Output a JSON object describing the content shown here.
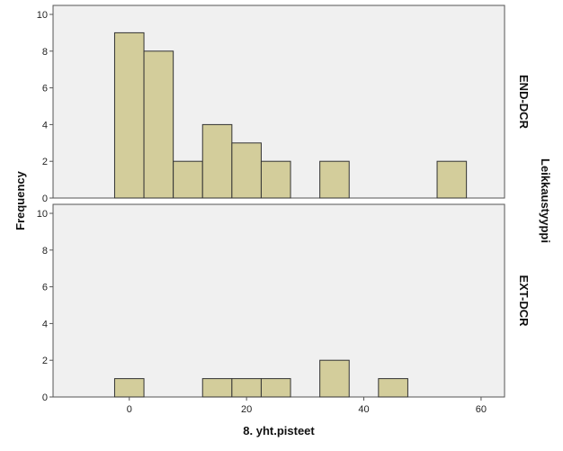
{
  "chart_data": {
    "type": "bar",
    "subtype": "histogram",
    "xlabel": "8. yht.pisteet",
    "ylabel": "Frequency",
    "facet_label": "Leikkaustyyppi",
    "xlim": [
      -13,
      64
    ],
    "ylim": [
      0,
      10
    ],
    "x_ticks": [
      0,
      20,
      40,
      60
    ],
    "y_ticks": [
      0,
      2,
      4,
      6,
      8,
      10
    ],
    "bin_width": 5,
    "grid": false,
    "colors": {
      "bar_fill": "#d3cd9b",
      "bar_stroke": "#333333",
      "plot_background": "#f0f0f0",
      "frame": "#555555"
    },
    "panels": [
      {
        "name": "END-DCR",
        "bins": [
          {
            "x0": -2.5,
            "x1": 2.5,
            "count": 9
          },
          {
            "x0": 2.5,
            "x1": 7.5,
            "count": 8
          },
          {
            "x0": 7.5,
            "x1": 12.5,
            "count": 2
          },
          {
            "x0": 12.5,
            "x1": 17.5,
            "count": 4
          },
          {
            "x0": 17.5,
            "x1": 22.5,
            "count": 3
          },
          {
            "x0": 22.5,
            "x1": 27.5,
            "count": 2
          },
          {
            "x0": 32.5,
            "x1": 37.5,
            "count": 2
          },
          {
            "x0": 52.5,
            "x1": 57.5,
            "count": 2
          }
        ]
      },
      {
        "name": "EXT-DCR",
        "bins": [
          {
            "x0": -2.5,
            "x1": 2.5,
            "count": 1
          },
          {
            "x0": 12.5,
            "x1": 17.5,
            "count": 1
          },
          {
            "x0": 17.5,
            "x1": 22.5,
            "count": 1
          },
          {
            "x0": 22.5,
            "x1": 27.5,
            "count": 1
          },
          {
            "x0": 32.5,
            "x1": 37.5,
            "count": 2
          },
          {
            "x0": 42.5,
            "x1": 47.5,
            "count": 1
          }
        ]
      }
    ]
  }
}
